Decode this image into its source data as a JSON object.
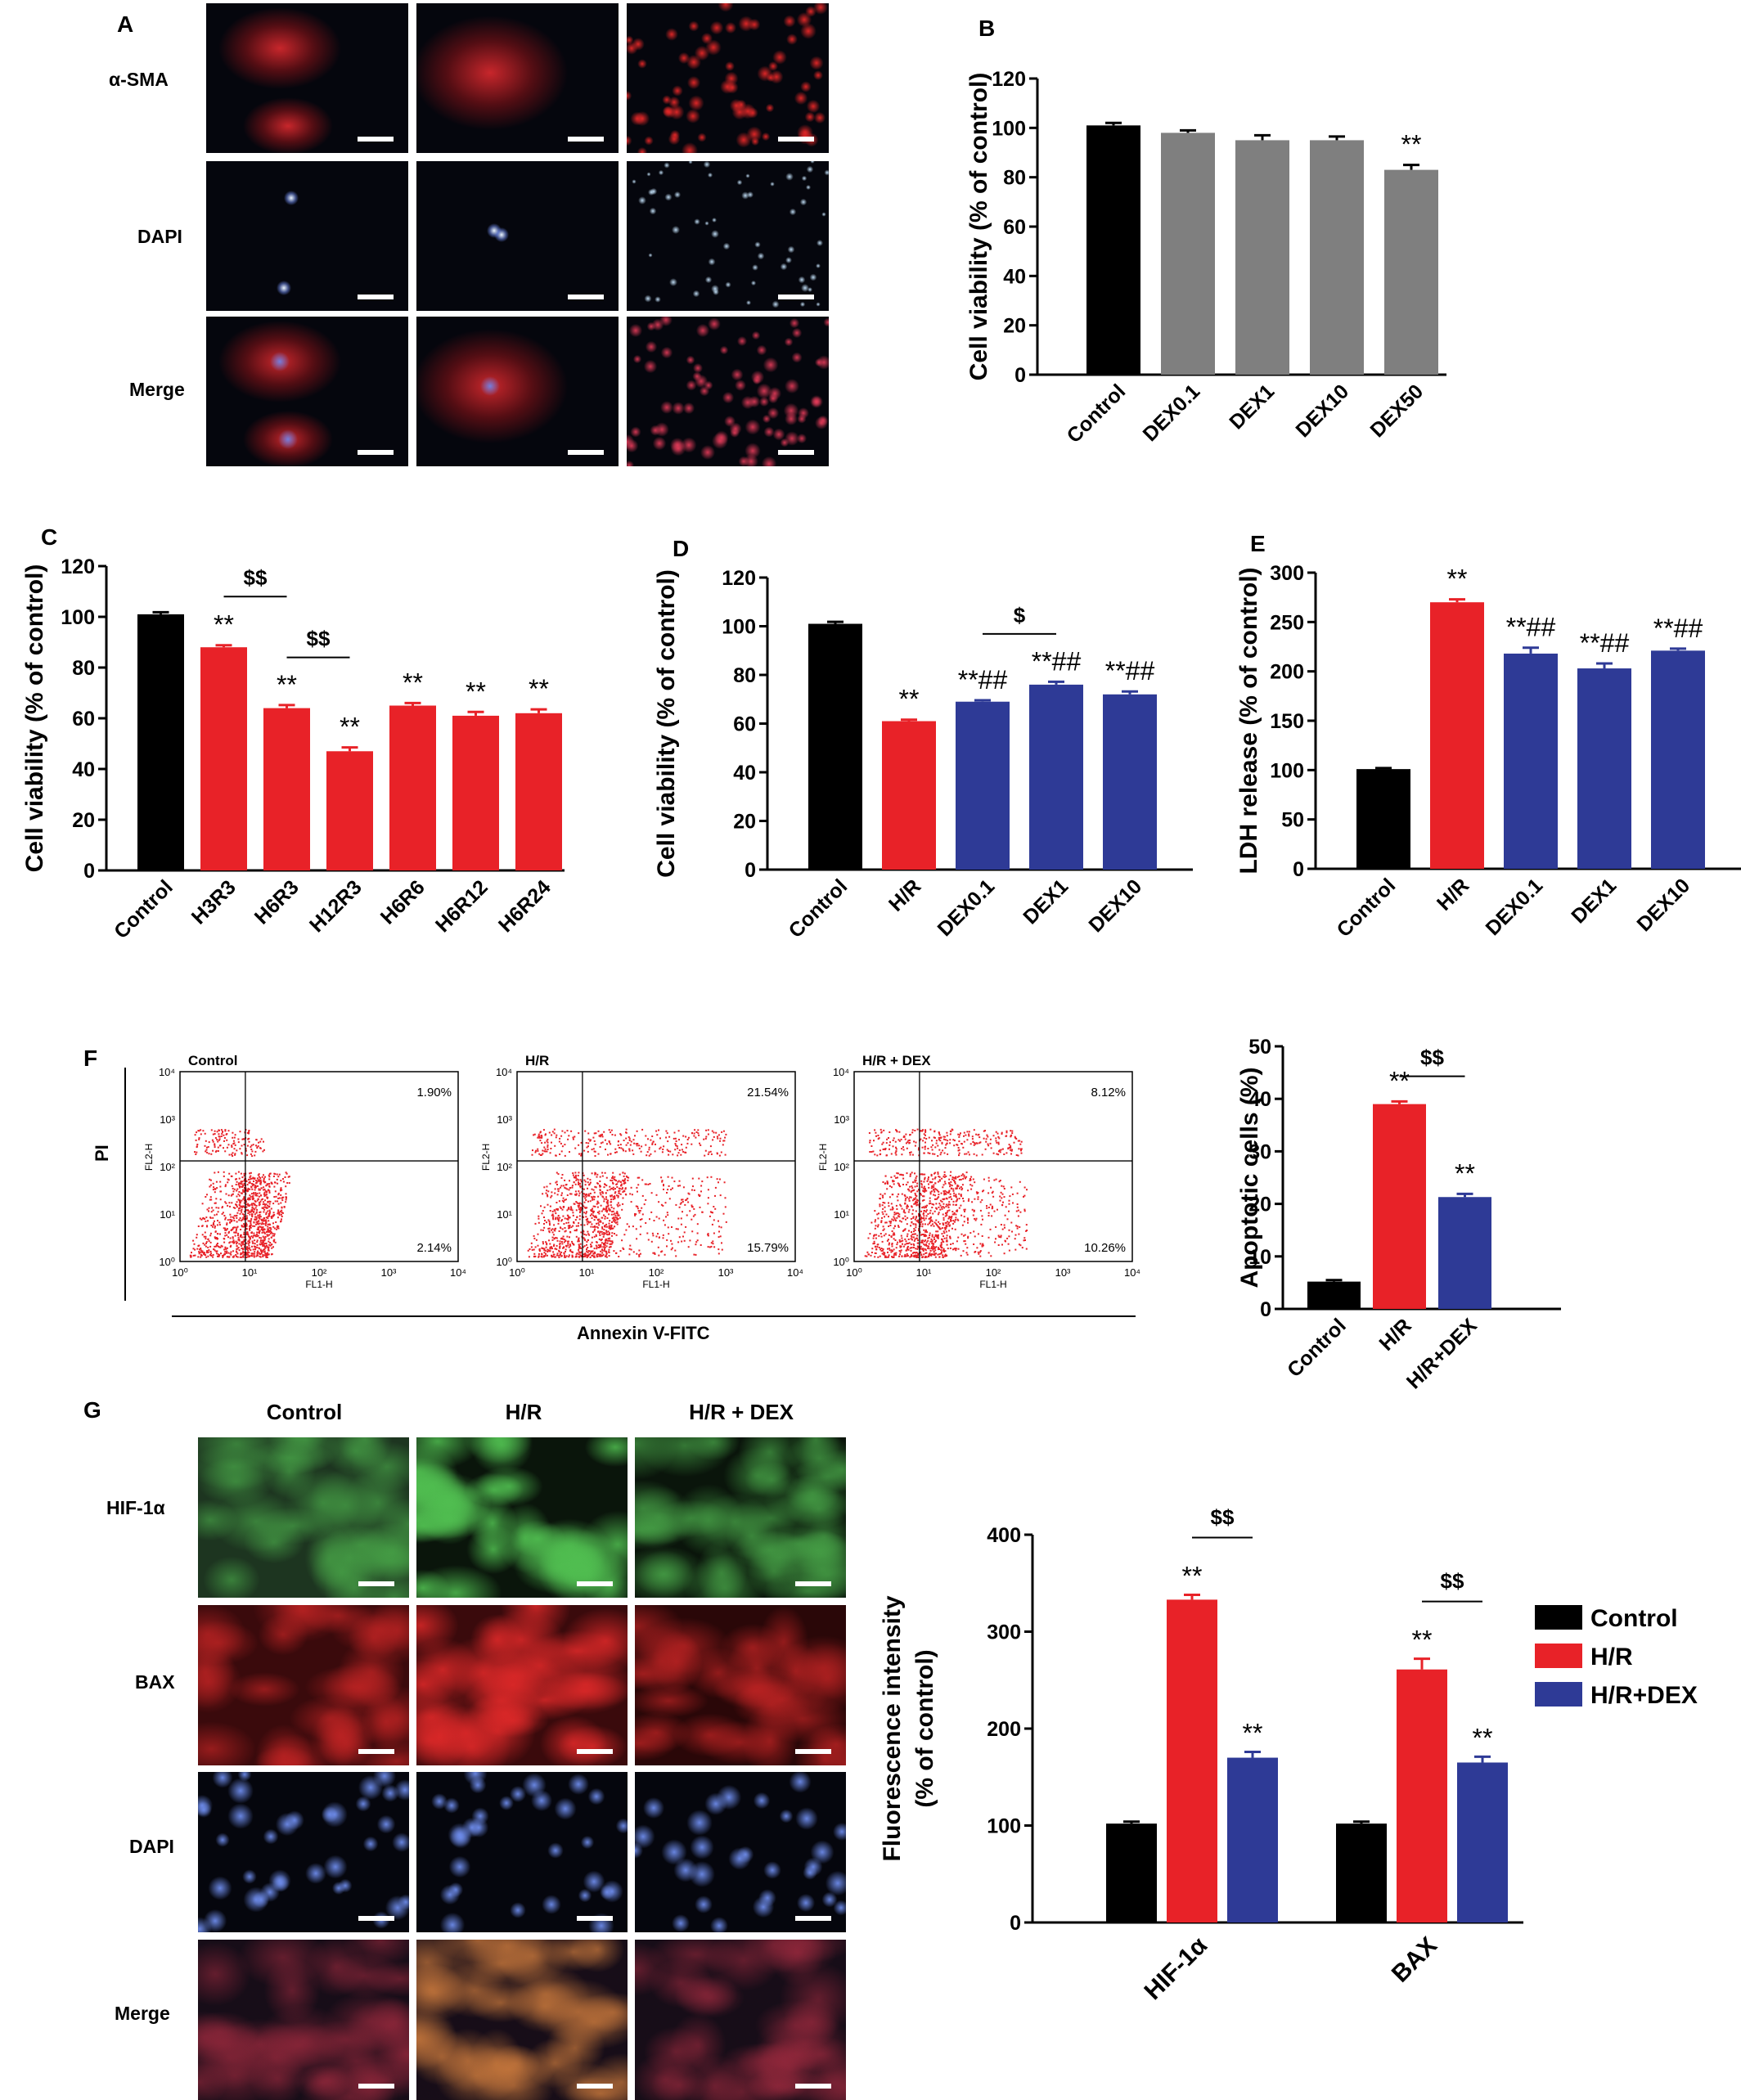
{
  "colors": {
    "control": "#000000",
    "gray": "#7f7f7f",
    "red": "#e82228",
    "blue": "#2e3a96",
    "green_stain": "#1a7a2a",
    "red_stain": "#b5161a",
    "blue_stain": "#3d55c8"
  },
  "panel_A": {
    "label": "A",
    "rows": [
      "α-SMA",
      "DAPI",
      "Merge"
    ]
  },
  "panel_F": {
    "label": "F",
    "y_axis_label": "PI",
    "x_axis_label": "Annexin V-FITC",
    "plots": [
      {
        "title": "Control",
        "ur": "1.90%",
        "lr": "2.14%"
      },
      {
        "title": "H/R",
        "ur": "21.54%",
        "lr": "15.79%"
      },
      {
        "title": "H/R + DEX",
        "ur": "8.12%",
        "lr": "10.26%"
      }
    ],
    "fl2_label": "FL2-H",
    "fl1_label": "FL1-H",
    "y_ticks": [
      "10⁰",
      "10¹",
      "10²",
      "10³",
      "10⁴"
    ],
    "x_ticks": [
      "10⁰",
      "10¹",
      "10²",
      "10³",
      "10⁴"
    ]
  },
  "panel_G": {
    "label": "G",
    "columns": [
      "Control",
      "H/R",
      "H/R + DEX"
    ],
    "rows": [
      "HIF-1α",
      "BAX",
      "DAPI",
      "Merge"
    ]
  },
  "chart_data": [
    {
      "panel": "B",
      "type": "bar",
      "categories": [
        "Control",
        "DEX0.1",
        "DEX1",
        "DEX10",
        "DEX50"
      ],
      "values": [
        101,
        98,
        95,
        95,
        83
      ],
      "errors": [
        1,
        1,
        2,
        1.5,
        2
      ],
      "ylabel": "Cell viability (% of control)",
      "ylim": [
        0,
        120
      ],
      "yticks": [
        0,
        20,
        40,
        60,
        80,
        100,
        120
      ],
      "annotations": [
        "",
        "",
        "",
        "",
        "**"
      ],
      "bar_colors": [
        "#000000",
        "#7f7f7f",
        "#7f7f7f",
        "#7f7f7f",
        "#7f7f7f"
      ]
    },
    {
      "panel": "C",
      "type": "bar",
      "categories": [
        "Control",
        "H3R3",
        "H6R3",
        "H12R3",
        "H6R6",
        "H6R12",
        "H6R24"
      ],
      "values": [
        101,
        88,
        64,
        47,
        65,
        61,
        62
      ],
      "errors": [
        0.8,
        0.8,
        1.2,
        1.5,
        1,
        1.5,
        1.5
      ],
      "ylabel": "Cell viability (% of control)",
      "ylim": [
        0,
        120
      ],
      "yticks": [
        0,
        20,
        40,
        60,
        80,
        100,
        120
      ],
      "annotations": [
        "",
        "**",
        "**",
        "**",
        "**",
        "**",
        "**"
      ],
      "brackets": [
        {
          "from": 1,
          "to": 2,
          "label": "$$"
        },
        {
          "from": 2,
          "to": 3,
          "label": "$$"
        }
      ],
      "bar_colors": [
        "#000000",
        "#e82228",
        "#e82228",
        "#e82228",
        "#e82228",
        "#e82228",
        "#e82228"
      ]
    },
    {
      "panel": "D",
      "type": "bar",
      "categories": [
        "Control",
        "H/R",
        "DEX0.1",
        "DEX1",
        "DEX10"
      ],
      "values": [
        101,
        61,
        69,
        76,
        72
      ],
      "errors": [
        0.8,
        0.6,
        0.6,
        1.2,
        1.2
      ],
      "ylabel": "Cell viability (% of control)",
      "ylim": [
        0,
        120
      ],
      "yticks": [
        0,
        20,
        40,
        60,
        80,
        100,
        120
      ],
      "annotations": [
        "",
        "**",
        "**##",
        "**##",
        "**##"
      ],
      "brackets": [
        {
          "from": 2,
          "to": 3,
          "label": "$"
        }
      ],
      "bar_colors": [
        "#000000",
        "#e82228",
        "#2e3a96",
        "#2e3a96",
        "#2e3a96"
      ]
    },
    {
      "panel": "E",
      "type": "bar",
      "categories": [
        "Control",
        "H/R",
        "DEX0.1",
        "DEX1",
        "DEX10"
      ],
      "values": [
        101,
        270,
        218,
        203,
        221
      ],
      "errors": [
        1,
        3,
        6,
        5,
        2
      ],
      "ylabel": "LDH release (% of control)",
      "ylim": [
        0,
        300
      ],
      "yticks": [
        0,
        50,
        100,
        150,
        200,
        250,
        300
      ],
      "annotations": [
        "",
        "**",
        "**##",
        "**##",
        "**##"
      ],
      "bar_colors": [
        "#000000",
        "#e82228",
        "#2e3a96",
        "#2e3a96",
        "#2e3a96"
      ]
    },
    {
      "panel": "F",
      "type": "bar",
      "categories": [
        "Control",
        "H/R",
        "H/R+DEX"
      ],
      "values": [
        5.2,
        39,
        21.3
      ],
      "errors": [
        0.3,
        0.5,
        0.6
      ],
      "ylabel": "Apoptotic cells (%)",
      "ylim": [
        0,
        50
      ],
      "yticks": [
        0,
        10,
        20,
        30,
        40,
        50
      ],
      "annotations": [
        "",
        "**",
        "**"
      ],
      "brackets": [
        {
          "from": 1,
          "to": 2,
          "label": "$$"
        }
      ],
      "bar_colors": [
        "#000000",
        "#e82228",
        "#2e3a96"
      ]
    },
    {
      "panel": "G",
      "type": "bar",
      "categories": [
        "HIF-1α",
        "BAX"
      ],
      "series": [
        {
          "name": "Control",
          "values": [
            102,
            102
          ],
          "errors": [
            2,
            2
          ],
          "color": "#000000"
        },
        {
          "name": "H/R",
          "values": [
            333,
            261
          ],
          "errors": [
            5,
            11
          ],
          "color": "#e82228"
        },
        {
          "name": "H/R+DEX",
          "values": [
            170,
            165
          ],
          "errors": [
            6,
            6
          ],
          "color": "#2e3a96"
        }
      ],
      "ylabel": "Fluorescence intensity (% of control)",
      "ylabel_lines": [
        "Fluorescence intensity",
        "(% of control)"
      ],
      "ylim": [
        0,
        400
      ],
      "yticks": [
        0,
        100,
        200,
        300,
        400
      ],
      "annotations": [
        [
          "",
          "**",
          "**"
        ],
        [
          "",
          "**",
          "**"
        ]
      ],
      "brackets": [
        {
          "group": 0,
          "label": "$$"
        },
        {
          "group": 1,
          "label": "$$"
        }
      ],
      "legend": "right"
    }
  ]
}
